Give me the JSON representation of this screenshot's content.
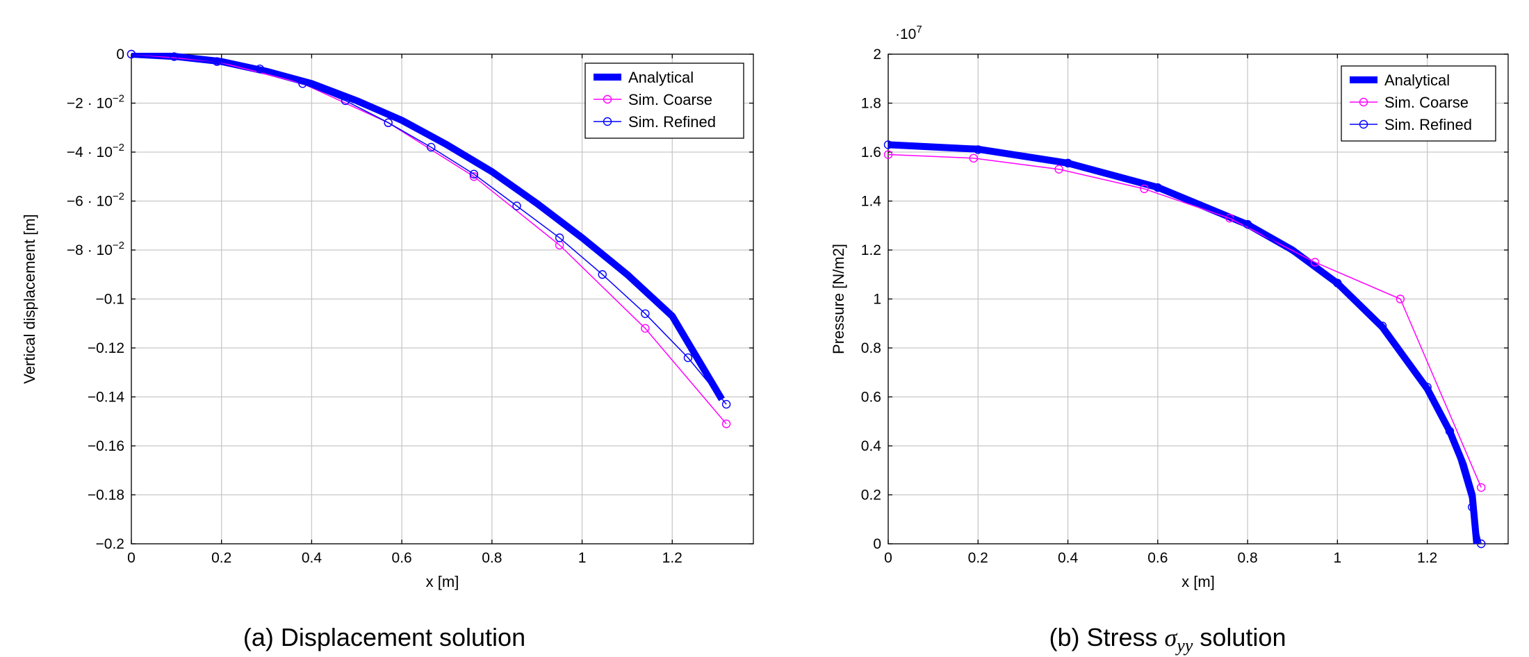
{
  "colors": {
    "analytical": "#0000ff",
    "coarse": "#ff00ff",
    "refined": "#0000ff"
  },
  "chart_data": [
    {
      "type": "line",
      "caption": "(a) Displacement solution",
      "xlabel": "x [m]",
      "ylabel": "Vertical displacement [m]",
      "xlim": [
        0,
        1.38
      ],
      "ylim": [
        -0.2,
        0
      ],
      "xticks": [
        {
          "v": 0,
          "label": "0"
        },
        {
          "v": 0.2,
          "label": "0.2"
        },
        {
          "v": 0.4,
          "label": "0.4"
        },
        {
          "v": 0.6,
          "label": "0.6"
        },
        {
          "v": 0.8,
          "label": "0.8"
        },
        {
          "v": 1,
          "label": "1"
        },
        {
          "v": 1.2,
          "label": "1.2"
        }
      ],
      "yticks": [
        {
          "v": 0,
          "label": "0"
        },
        {
          "v": -0.02,
          "label": "−2 · 10−2"
        },
        {
          "v": -0.04,
          "label": "−4 · 10−2"
        },
        {
          "v": -0.06,
          "label": "−6 · 10−2"
        },
        {
          "v": -0.08,
          "label": "−8 · 10−2"
        },
        {
          "v": -0.1,
          "label": "−0.1"
        },
        {
          "v": -0.12,
          "label": "−0.12"
        },
        {
          "v": -0.14,
          "label": "−0.14"
        },
        {
          "v": -0.16,
          "label": "−0.16"
        },
        {
          "v": -0.18,
          "label": "−0.18"
        },
        {
          "v": -0.2,
          "label": "−0.2"
        }
      ],
      "grid": true,
      "legend_position": "top-right",
      "series": [
        {
          "name": "Analytical",
          "style": "thick",
          "x": [
            0,
            0.1,
            0.2,
            0.3,
            0.4,
            0.5,
            0.6,
            0.7,
            0.8,
            0.9,
            1.0,
            1.1,
            1.2,
            1.31
          ],
          "y": [
            0,
            -0.001,
            -0.003,
            -0.007,
            -0.012,
            -0.019,
            -0.027,
            -0.037,
            -0.048,
            -0.061,
            -0.075,
            -0.09,
            -0.107,
            -0.141
          ]
        },
        {
          "name": "Sim. Coarse",
          "style": "marker",
          "x": [
            0,
            0.19,
            0.38,
            0.57,
            0.76,
            0.95,
            1.14,
            1.32
          ],
          "y": [
            0,
            -0.003,
            -0.012,
            -0.028,
            -0.05,
            -0.078,
            -0.112,
            -0.151
          ]
        },
        {
          "name": "Sim. Refined",
          "style": "marker",
          "x": [
            0,
            0.095,
            0.19,
            0.285,
            0.38,
            0.475,
            0.57,
            0.665,
            0.76,
            0.855,
            0.95,
            1.045,
            1.14,
            1.235,
            1.32
          ],
          "y": [
            0,
            -0.001,
            -0.003,
            -0.006,
            -0.012,
            -0.019,
            -0.028,
            -0.038,
            -0.049,
            -0.062,
            -0.075,
            -0.09,
            -0.106,
            -0.124,
            -0.143
          ]
        }
      ]
    },
    {
      "type": "line",
      "caption": "(b) Stress σyy solution",
      "xlabel": "x [m]",
      "ylabel": "Pressure [N/m2]",
      "y_multiplier": "·107",
      "xlim": [
        0,
        1.38
      ],
      "ylim": [
        0,
        2
      ],
      "xticks": [
        {
          "v": 0,
          "label": "0"
        },
        {
          "v": 0.2,
          "label": "0.2"
        },
        {
          "v": 0.4,
          "label": "0.4"
        },
        {
          "v": 0.6,
          "label": "0.6"
        },
        {
          "v": 0.8,
          "label": "0.8"
        },
        {
          "v": 1,
          "label": "1"
        },
        {
          "v": 1.2,
          "label": "1.2"
        }
      ],
      "yticks": [
        {
          "v": 0,
          "label": "0"
        },
        {
          "v": 0.2,
          "label": "0.2"
        },
        {
          "v": 0.4,
          "label": "0.4"
        },
        {
          "v": 0.6,
          "label": "0.6"
        },
        {
          "v": 0.8,
          "label": "0.8"
        },
        {
          "v": 1,
          "label": "1"
        },
        {
          "v": 1.2,
          "label": "1.2"
        },
        {
          "v": 1.4,
          "label": "1.4"
        },
        {
          "v": 1.6,
          "label": "1.6"
        },
        {
          "v": 1.8,
          "label": "1.8"
        },
        {
          "v": 2,
          "label": "2"
        }
      ],
      "grid": true,
      "legend_position": "top-right",
      "series": [
        {
          "name": "Analytical",
          "style": "thick",
          "x": [
            0,
            0.2,
            0.4,
            0.6,
            0.8,
            0.9,
            1.0,
            1.1,
            1.2,
            1.25,
            1.28,
            1.3,
            1.31
          ],
          "y": [
            1.63,
            1.612,
            1.555,
            1.456,
            1.304,
            1.2,
            1.064,
            0.885,
            0.633,
            0.459,
            0.325,
            0.199,
            0
          ]
        },
        {
          "name": "Sim. Coarse",
          "style": "marker",
          "x": [
            0,
            0.19,
            0.38,
            0.57,
            0.76,
            0.95,
            1.14,
            1.32
          ],
          "y": [
            1.59,
            1.575,
            1.53,
            1.45,
            1.33,
            1.15,
            1.0,
            0.23
          ]
        },
        {
          "name": "Sim. Refined",
          "style": "marker",
          "x": [
            0,
            0.2,
            0.4,
            0.6,
            0.8,
            1.0,
            1.1,
            1.2,
            1.25,
            1.3,
            1.32
          ],
          "y": [
            1.63,
            1.61,
            1.555,
            1.455,
            1.305,
            1.065,
            0.89,
            0.64,
            0.46,
            0.15,
            0
          ]
        }
      ]
    }
  ]
}
